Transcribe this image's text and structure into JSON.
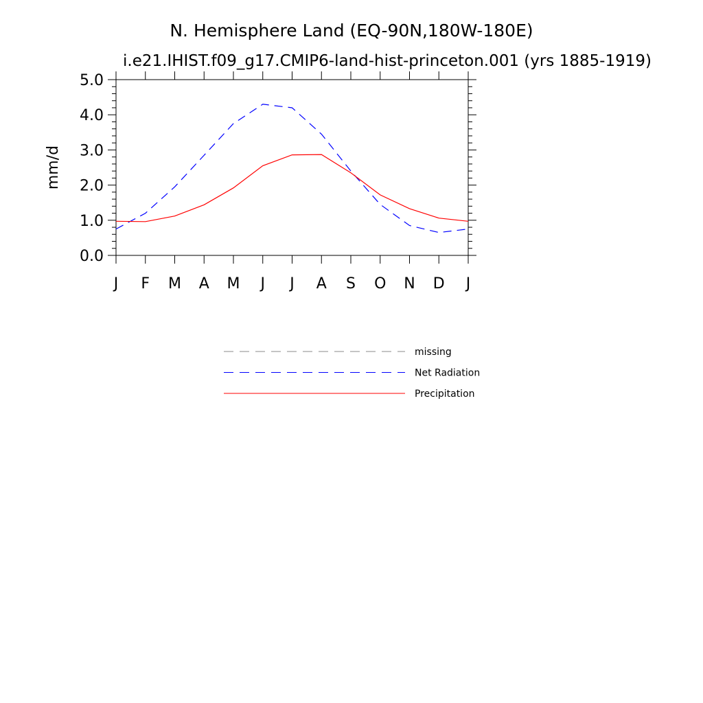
{
  "chart_data": {
    "type": "line",
    "title": "N. Hemisphere Land (EQ-90N,180W-180E)",
    "subtitle": "i.e21.IHIST.f09_g17.CMIP6-land-hist-princeton.001 (yrs 1885-1919)",
    "ylabel": "mm/d",
    "xlabel": "",
    "ylim": [
      0,
      5
    ],
    "yticks": [
      "0.0",
      "1.0",
      "2.0",
      "3.0",
      "4.0",
      "5.0"
    ],
    "categories": [
      "J",
      "F",
      "M",
      "A",
      "M",
      "J",
      "J",
      "A",
      "S",
      "O",
      "N",
      "D",
      "J"
    ],
    "grid": false,
    "legend_placement": "bottom-center",
    "series": [
      {
        "name": "Net Radiation",
        "color": "#0000ff",
        "dash": "dashed",
        "values": [
          0.75,
          1.2,
          1.95,
          2.85,
          3.75,
          4.3,
          4.2,
          3.45,
          2.4,
          1.45,
          0.85,
          0.65,
          0.75
        ]
      },
      {
        "name": "Precipitation",
        "color": "#ff0000",
        "dash": "solid",
        "values": [
          0.97,
          0.96,
          1.12,
          1.44,
          1.92,
          2.55,
          2.86,
          2.87,
          2.35,
          1.72,
          1.33,
          1.06,
          0.97
        ]
      }
    ],
    "legend": [
      {
        "label": "missing",
        "color": "#888888",
        "dash": "dashed"
      },
      {
        "label": "Net Radiation",
        "color": "#0000ff",
        "dash": "dashed"
      },
      {
        "label": "Precipitation",
        "color": "#ff0000",
        "dash": "solid"
      }
    ]
  }
}
